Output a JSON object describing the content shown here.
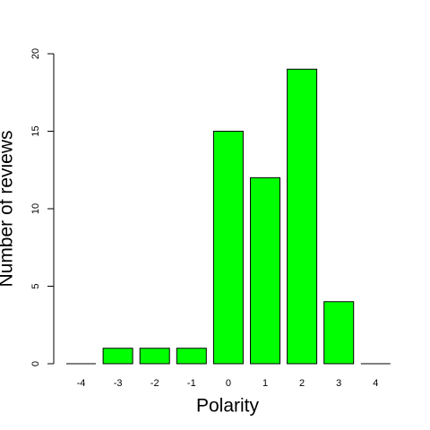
{
  "chart_data": {
    "type": "bar",
    "x_label": "Polarity",
    "y_label": "Number of reviews",
    "categories": [
      "-4",
      "-3",
      "-2",
      "-1",
      "0",
      "1",
      "2",
      "3",
      "4"
    ],
    "values": [
      0,
      1,
      1,
      1,
      15,
      12,
      19,
      4,
      0
    ],
    "color": "#00ff00",
    "ylim": [
      0,
      20
    ],
    "yticks": [
      0,
      5,
      10,
      15,
      20
    ]
  }
}
